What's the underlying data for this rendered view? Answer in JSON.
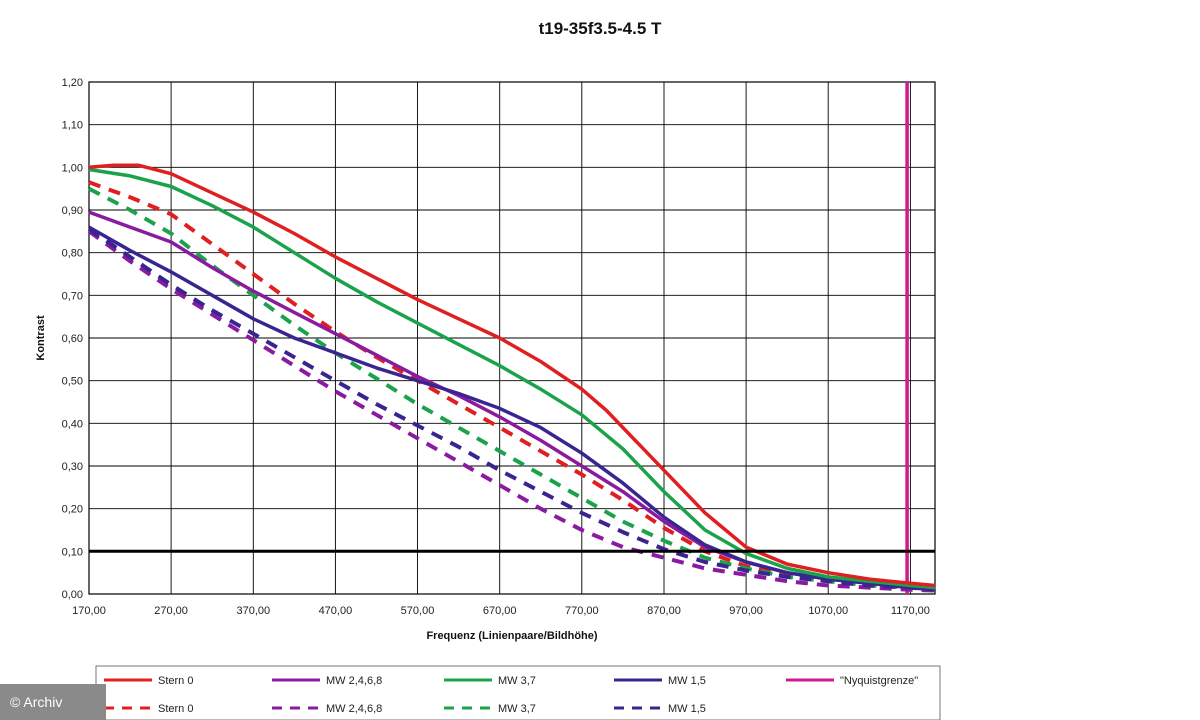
{
  "credit": "© Archiv",
  "chart_data": {
    "type": "line",
    "title": "t19-35f3.5-4.5 T",
    "xlabel": "Frequenz (Linienpaare/Bildhöhe)",
    "ylabel": "Kontrast",
    "xlim": [
      170,
      1200
    ],
    "ylim": [
      0,
      1.2
    ],
    "x_ticks": [
      170,
      270,
      370,
      470,
      570,
      670,
      770,
      870,
      970,
      1070,
      1170
    ],
    "x_tick_labels": [
      "170,00",
      "270,00",
      "370,00",
      "470,00",
      "570,00",
      "670,00",
      "770,00",
      "870,00",
      "970,00",
      "1070,00",
      "1170,00"
    ],
    "y_ticks": [
      0,
      0.1,
      0.2,
      0.3,
      0.4,
      0.5,
      0.6,
      0.7,
      0.8,
      0.9,
      1.0,
      1.1,
      1.2
    ],
    "y_tick_labels": [
      "0,00",
      "0,10",
      "0,20",
      "0,30",
      "0,40",
      "0,50",
      "0,60",
      "0,70",
      "0,80",
      "0,90",
      "1,00",
      "1,10",
      "1,20"
    ],
    "grid": true,
    "legend_position": "bottom",
    "threshold_line": {
      "y": 0.1,
      "color": "#000000"
    },
    "series": [
      {
        "name": "Stern 0",
        "color": "#e02020",
        "style": "solid",
        "points": [
          [
            170,
            1.0
          ],
          [
            200,
            1.005
          ],
          [
            230,
            1.005
          ],
          [
            270,
            0.985
          ],
          [
            320,
            0.94
          ],
          [
            370,
            0.895
          ],
          [
            420,
            0.845
          ],
          [
            470,
            0.79
          ],
          [
            520,
            0.74
          ],
          [
            570,
            0.69
          ],
          [
            620,
            0.645
          ],
          [
            670,
            0.6
          ],
          [
            720,
            0.545
          ],
          [
            770,
            0.48
          ],
          [
            800,
            0.43
          ],
          [
            830,
            0.37
          ],
          [
            870,
            0.29
          ],
          [
            920,
            0.19
          ],
          [
            970,
            0.11
          ],
          [
            1020,
            0.07
          ],
          [
            1070,
            0.05
          ],
          [
            1120,
            0.035
          ],
          [
            1170,
            0.025
          ],
          [
            1200,
            0.02
          ]
        ]
      },
      {
        "name": "MW 2,4,6,8",
        "color": "#8a1ba0",
        "style": "solid",
        "points": [
          [
            170,
            0.895
          ],
          [
            220,
            0.86
          ],
          [
            270,
            0.825
          ],
          [
            320,
            0.765
          ],
          [
            370,
            0.71
          ],
          [
            420,
            0.66
          ],
          [
            470,
            0.61
          ],
          [
            520,
            0.56
          ],
          [
            570,
            0.51
          ],
          [
            620,
            0.465
          ],
          [
            670,
            0.415
          ],
          [
            720,
            0.36
          ],
          [
            770,
            0.3
          ],
          [
            820,
            0.24
          ],
          [
            870,
            0.17
          ],
          [
            920,
            0.11
          ],
          [
            970,
            0.075
          ],
          [
            1020,
            0.05
          ],
          [
            1070,
            0.035
          ],
          [
            1120,
            0.025
          ],
          [
            1170,
            0.015
          ],
          [
            1200,
            0.01
          ]
        ]
      },
      {
        "name": "MW 3,7",
        "color": "#1aa34a",
        "style": "solid",
        "points": [
          [
            170,
            0.995
          ],
          [
            220,
            0.98
          ],
          [
            270,
            0.955
          ],
          [
            320,
            0.91
          ],
          [
            370,
            0.86
          ],
          [
            420,
            0.8
          ],
          [
            470,
            0.74
          ],
          [
            520,
            0.685
          ],
          [
            570,
            0.635
          ],
          [
            620,
            0.585
          ],
          [
            670,
            0.535
          ],
          [
            720,
            0.48
          ],
          [
            770,
            0.42
          ],
          [
            820,
            0.34
          ],
          [
            870,
            0.24
          ],
          [
            920,
            0.15
          ],
          [
            970,
            0.095
          ],
          [
            1020,
            0.06
          ],
          [
            1070,
            0.04
          ],
          [
            1120,
            0.03
          ],
          [
            1170,
            0.02
          ],
          [
            1200,
            0.015
          ]
        ]
      },
      {
        "name": "MW 1,5",
        "color": "#3a2590",
        "style": "solid",
        "points": [
          [
            170,
            0.86
          ],
          [
            220,
            0.805
          ],
          [
            270,
            0.755
          ],
          [
            320,
            0.7
          ],
          [
            370,
            0.645
          ],
          [
            420,
            0.6
          ],
          [
            470,
            0.565
          ],
          [
            520,
            0.53
          ],
          [
            570,
            0.5
          ],
          [
            620,
            0.47
          ],
          [
            670,
            0.435
          ],
          [
            720,
            0.39
          ],
          [
            770,
            0.33
          ],
          [
            820,
            0.26
          ],
          [
            870,
            0.18
          ],
          [
            920,
            0.115
          ],
          [
            970,
            0.075
          ],
          [
            1020,
            0.05
          ],
          [
            1070,
            0.035
          ],
          [
            1120,
            0.025
          ],
          [
            1170,
            0.015
          ],
          [
            1200,
            0.01
          ]
        ]
      },
      {
        "name": "\"Nyquistgrenze\"",
        "color": "#d11a8f",
        "style": "solid",
        "points": [
          [
            1166,
            0
          ],
          [
            1166,
            1.2
          ]
        ]
      },
      {
        "name": "Stern 0",
        "color": "#e02020",
        "style": "dashed",
        "points": [
          [
            170,
            0.965
          ],
          [
            220,
            0.93
          ],
          [
            270,
            0.89
          ],
          [
            320,
            0.82
          ],
          [
            370,
            0.75
          ],
          [
            420,
            0.68
          ],
          [
            470,
            0.615
          ],
          [
            520,
            0.555
          ],
          [
            570,
            0.5
          ],
          [
            620,
            0.445
          ],
          [
            670,
            0.39
          ],
          [
            720,
            0.335
          ],
          [
            770,
            0.28
          ],
          [
            820,
            0.22
          ],
          [
            870,
            0.155
          ],
          [
            920,
            0.1
          ],
          [
            970,
            0.065
          ],
          [
            1020,
            0.045
          ],
          [
            1070,
            0.03
          ],
          [
            1120,
            0.02
          ],
          [
            1170,
            0.015
          ],
          [
            1200,
            0.01
          ]
        ]
      },
      {
        "name": "MW 2,4,6,8",
        "color": "#8a1ba0",
        "style": "dashed",
        "points": [
          [
            170,
            0.85
          ],
          [
            220,
            0.78
          ],
          [
            270,
            0.715
          ],
          [
            320,
            0.655
          ],
          [
            370,
            0.595
          ],
          [
            420,
            0.535
          ],
          [
            470,
            0.475
          ],
          [
            520,
            0.42
          ],
          [
            570,
            0.365
          ],
          [
            620,
            0.31
          ],
          [
            670,
            0.255
          ],
          [
            720,
            0.2
          ],
          [
            770,
            0.15
          ],
          [
            820,
            0.11
          ],
          [
            870,
            0.085
          ],
          [
            920,
            0.06
          ],
          [
            970,
            0.045
          ],
          [
            1020,
            0.03
          ],
          [
            1070,
            0.02
          ],
          [
            1120,
            0.015
          ],
          [
            1170,
            0.01
          ],
          [
            1200,
            0.008
          ]
        ]
      },
      {
        "name": "MW 3,7",
        "color": "#1aa34a",
        "style": "dashed",
        "points": [
          [
            170,
            0.95
          ],
          [
            220,
            0.9
          ],
          [
            270,
            0.845
          ],
          [
            320,
            0.77
          ],
          [
            370,
            0.7
          ],
          [
            420,
            0.63
          ],
          [
            470,
            0.565
          ],
          [
            520,
            0.505
          ],
          [
            570,
            0.445
          ],
          [
            620,
            0.39
          ],
          [
            670,
            0.335
          ],
          [
            720,
            0.28
          ],
          [
            770,
            0.225
          ],
          [
            820,
            0.17
          ],
          [
            870,
            0.125
          ],
          [
            920,
            0.085
          ],
          [
            970,
            0.06
          ],
          [
            1020,
            0.04
          ],
          [
            1070,
            0.03
          ],
          [
            1120,
            0.02
          ],
          [
            1170,
            0.015
          ],
          [
            1200,
            0.01
          ]
        ]
      },
      {
        "name": "MW 1,5",
        "color": "#3a2590",
        "style": "dashed",
        "points": [
          [
            170,
            0.855
          ],
          [
            220,
            0.79
          ],
          [
            270,
            0.725
          ],
          [
            320,
            0.665
          ],
          [
            370,
            0.61
          ],
          [
            420,
            0.555
          ],
          [
            470,
            0.5
          ],
          [
            520,
            0.445
          ],
          [
            570,
            0.395
          ],
          [
            620,
            0.345
          ],
          [
            670,
            0.29
          ],
          [
            720,
            0.24
          ],
          [
            770,
            0.19
          ],
          [
            820,
            0.145
          ],
          [
            870,
            0.105
          ],
          [
            920,
            0.075
          ],
          [
            970,
            0.055
          ],
          [
            1020,
            0.04
          ],
          [
            1070,
            0.03
          ],
          [
            1120,
            0.02
          ],
          [
            1170,
            0.015
          ],
          [
            1200,
            0.01
          ]
        ]
      }
    ]
  }
}
